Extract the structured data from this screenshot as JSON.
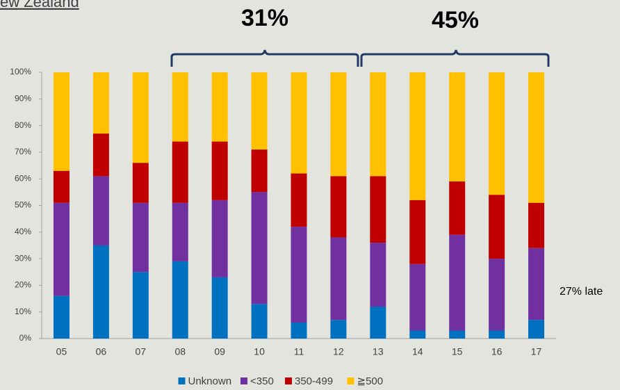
{
  "chart_data": {
    "type": "stacked_bar",
    "title": "ew Zealand",
    "annotations": [
      "31%",
      "45%",
      "27% late"
    ],
    "categories": [
      "05",
      "06",
      "07",
      "08",
      "09",
      "10",
      "11",
      "12",
      "13",
      "14",
      "15",
      "16",
      "17"
    ],
    "series": [
      {
        "name": "Unknown",
        "color": "#0070c0",
        "values": [
          16,
          35,
          25,
          29,
          23,
          13,
          6,
          7,
          12,
          3,
          3,
          3,
          7
        ]
      },
      {
        "name": "<350",
        "color": "#7030a0",
        "values": [
          35,
          26,
          26,
          22,
          29,
          42,
          36,
          31,
          24,
          25,
          36,
          27,
          27
        ]
      },
      {
        "name": "350-499",
        "color": "#c00000",
        "values": [
          12,
          16,
          15,
          23,
          22,
          16,
          20,
          23,
          25,
          24,
          20,
          24,
          17
        ]
      },
      {
        "name": "≧500",
        "color": "#ffc000",
        "values": [
          37,
          23,
          34,
          26,
          26,
          29,
          38,
          39,
          39,
          48,
          41,
          46,
          49
        ]
      }
    ],
    "ylim": [
      0,
      100
    ],
    "yticks": [
      {
        "value": 0,
        "label": "0%"
      },
      {
        "value": 10,
        "label": "10%"
      },
      {
        "value": 20,
        "label": "20%"
      },
      {
        "value": 30,
        "label": "30%"
      },
      {
        "value": 40,
        "label": "40%"
      },
      {
        "value": 50,
        "label": "50%"
      },
      {
        "value": 60,
        "label": "60%"
      },
      {
        "value": 70,
        "label": "70%"
      },
      {
        "value": 80,
        "label": "80%"
      },
      {
        "value": 90,
        "label": "90%"
      },
      {
        "value": 100,
        "label": "100%"
      }
    ],
    "legend": "bottom"
  }
}
